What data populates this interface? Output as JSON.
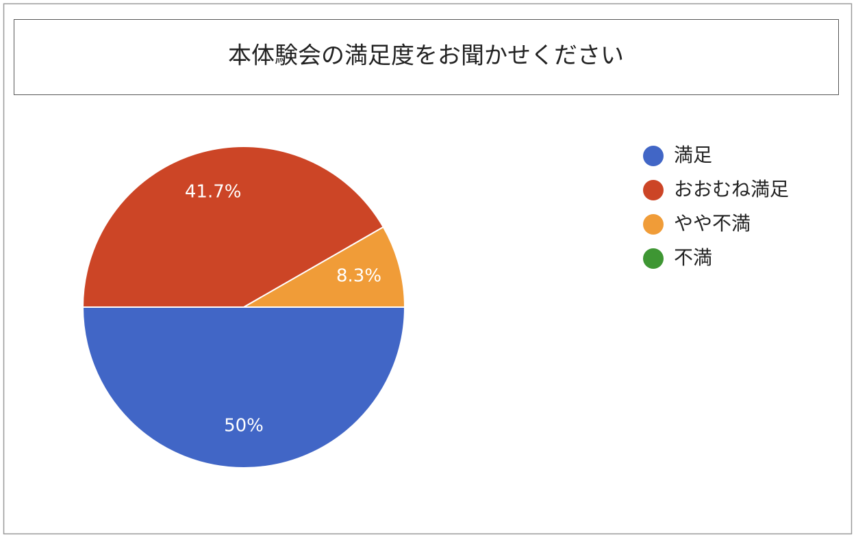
{
  "chart_data": {
    "type": "pie",
    "title": "本体験会の満足度をお聞かせください",
    "categories": [
      "満足",
      "おおむね満足",
      "やや不満",
      "不満"
    ],
    "values": [
      50,
      41.7,
      8.3,
      0
    ],
    "value_labels": [
      "50%",
      "41.7%",
      "8.3%",
      null
    ],
    "colors": [
      "#4166c6",
      "#cc4526",
      "#f09c38",
      "#3e9633"
    ],
    "legend": "right"
  }
}
